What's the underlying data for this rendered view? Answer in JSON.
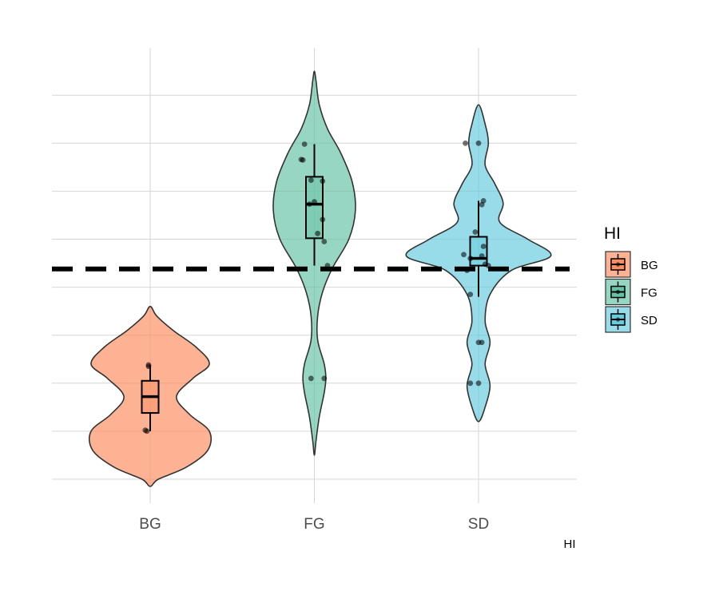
{
  "chart_data": {
    "type": "violin",
    "xlabel": "HI",
    "categories": [
      "BG",
      "FG",
      "SD"
    ],
    "ylim": [
      0,
      8.6
    ],
    "grid": true,
    "legend_position": "right",
    "legend": {
      "title": "HI",
      "entries": [
        {
          "label": "BG",
          "color": "#fc8d62"
        },
        {
          "label": "FG",
          "color": "#66c2a5"
        },
        {
          "label": "SD",
          "color": "#66ccdd"
        }
      ]
    },
    "reference_line": {
      "y": 4.38,
      "style": "dashed",
      "color": "#000000"
    },
    "series": [
      {
        "name": "BG",
        "color": "#fc8d62",
        "box": {
          "whisker_low": 1.0,
          "q1": 1.38,
          "median": 1.72,
          "q3": 2.05,
          "whisker_high": 2.38
        },
        "points": [
          {
            "x": -0.01,
            "y": 2.38
          },
          {
            "x": -0.01,
            "y": 2.35
          },
          {
            "x": -0.03,
            "y": 1.02
          },
          {
            "x": -0.02,
            "y": 1.0
          }
        ],
        "density": [
          {
            "y": -0.15,
            "w": 0.0
          },
          {
            "y": 0.0,
            "w": 0.05
          },
          {
            "y": 0.25,
            "w": 0.22
          },
          {
            "y": 0.6,
            "w": 0.35
          },
          {
            "y": 1.0,
            "w": 0.36
          },
          {
            "y": 1.35,
            "w": 0.24
          },
          {
            "y": 1.72,
            "w": 0.16
          },
          {
            "y": 2.1,
            "w": 0.26
          },
          {
            "y": 2.4,
            "w": 0.36
          },
          {
            "y": 2.75,
            "w": 0.28
          },
          {
            "y": 3.1,
            "w": 0.14
          },
          {
            "y": 3.4,
            "w": 0.04
          },
          {
            "y": 3.6,
            "w": 0.0
          }
        ]
      },
      {
        "name": "FG",
        "color": "#66c2a5",
        "box": {
          "whisker_low": 4.45,
          "q1": 5.02,
          "median": 5.73,
          "q3": 6.3,
          "whisker_high": 6.98
        },
        "points": [
          {
            "x": -0.06,
            "y": 6.98
          },
          {
            "x": -0.08,
            "y": 6.66
          },
          {
            "x": -0.07,
            "y": 6.65
          },
          {
            "x": -0.02,
            "y": 6.23
          },
          {
            "x": 0.05,
            "y": 6.21
          },
          {
            "x": 0.0,
            "y": 5.78
          },
          {
            "x": -0.03,
            "y": 5.73
          },
          {
            "x": 0.05,
            "y": 5.41
          },
          {
            "x": 0.02,
            "y": 5.12
          },
          {
            "x": 0.06,
            "y": 4.95
          },
          {
            "x": 0.08,
            "y": 4.45
          },
          {
            "x": -0.02,
            "y": 2.1
          },
          {
            "x": 0.06,
            "y": 2.1
          }
        ],
        "density": [
          {
            "y": 0.5,
            "w": 0.0
          },
          {
            "y": 0.8,
            "w": 0.01
          },
          {
            "y": 1.3,
            "w": 0.03
          },
          {
            "y": 1.8,
            "w": 0.06
          },
          {
            "y": 2.1,
            "w": 0.07
          },
          {
            "y": 2.4,
            "w": 0.06
          },
          {
            "y": 2.9,
            "w": 0.02
          },
          {
            "y": 3.4,
            "w": 0.02
          },
          {
            "y": 3.9,
            "w": 0.05
          },
          {
            "y": 4.4,
            "w": 0.11
          },
          {
            "y": 5.0,
            "w": 0.21
          },
          {
            "y": 5.6,
            "w": 0.25
          },
          {
            "y": 6.2,
            "w": 0.23
          },
          {
            "y": 6.8,
            "w": 0.16
          },
          {
            "y": 7.3,
            "w": 0.08
          },
          {
            "y": 7.8,
            "w": 0.03
          },
          {
            "y": 8.3,
            "w": 0.01
          },
          {
            "y": 8.5,
            "w": 0.0
          }
        ]
      },
      {
        "name": "SD",
        "color": "#66ccdd",
        "box": {
          "whisker_low": 3.8,
          "q1": 4.45,
          "median": 4.6,
          "q3": 5.05,
          "whisker_high": 5.8
        },
        "points": [
          {
            "x": -0.08,
            "y": 7.0
          },
          {
            "x": 0.0,
            "y": 7.0
          },
          {
            "x": 0.03,
            "y": 5.8
          },
          {
            "x": 0.02,
            "y": 5.72
          },
          {
            "x": -0.02,
            "y": 5.15
          },
          {
            "x": 0.03,
            "y": 4.85
          },
          {
            "x": -0.09,
            "y": 4.68
          },
          {
            "x": 0.02,
            "y": 4.65
          },
          {
            "x": -0.05,
            "y": 4.6
          },
          {
            "x": 0.04,
            "y": 4.48
          },
          {
            "x": 0.06,
            "y": 4.45
          },
          {
            "x": -0.07,
            "y": 4.35
          },
          {
            "x": -0.05,
            "y": 3.85
          },
          {
            "x": 0.0,
            "y": 2.85
          },
          {
            "x": 0.02,
            "y": 2.85
          },
          {
            "x": -0.05,
            "y": 2.0
          },
          {
            "x": 0.0,
            "y": 2.0
          }
        ],
        "density": [
          {
            "y": 1.2,
            "w": 0.0
          },
          {
            "y": 1.5,
            "w": 0.04
          },
          {
            "y": 1.95,
            "w": 0.07
          },
          {
            "y": 2.4,
            "w": 0.04
          },
          {
            "y": 2.85,
            "w": 0.07
          },
          {
            "y": 3.3,
            "w": 0.04
          },
          {
            "y": 3.85,
            "w": 0.07
          },
          {
            "y": 4.35,
            "w": 0.2
          },
          {
            "y": 4.65,
            "w": 0.44
          },
          {
            "y": 5.0,
            "w": 0.3
          },
          {
            "y": 5.35,
            "w": 0.13
          },
          {
            "y": 5.75,
            "w": 0.15
          },
          {
            "y": 6.15,
            "w": 0.1
          },
          {
            "y": 6.55,
            "w": 0.04
          },
          {
            "y": 7.0,
            "w": 0.06
          },
          {
            "y": 7.4,
            "w": 0.04
          },
          {
            "y": 7.8,
            "w": 0.0
          }
        ]
      }
    ]
  }
}
